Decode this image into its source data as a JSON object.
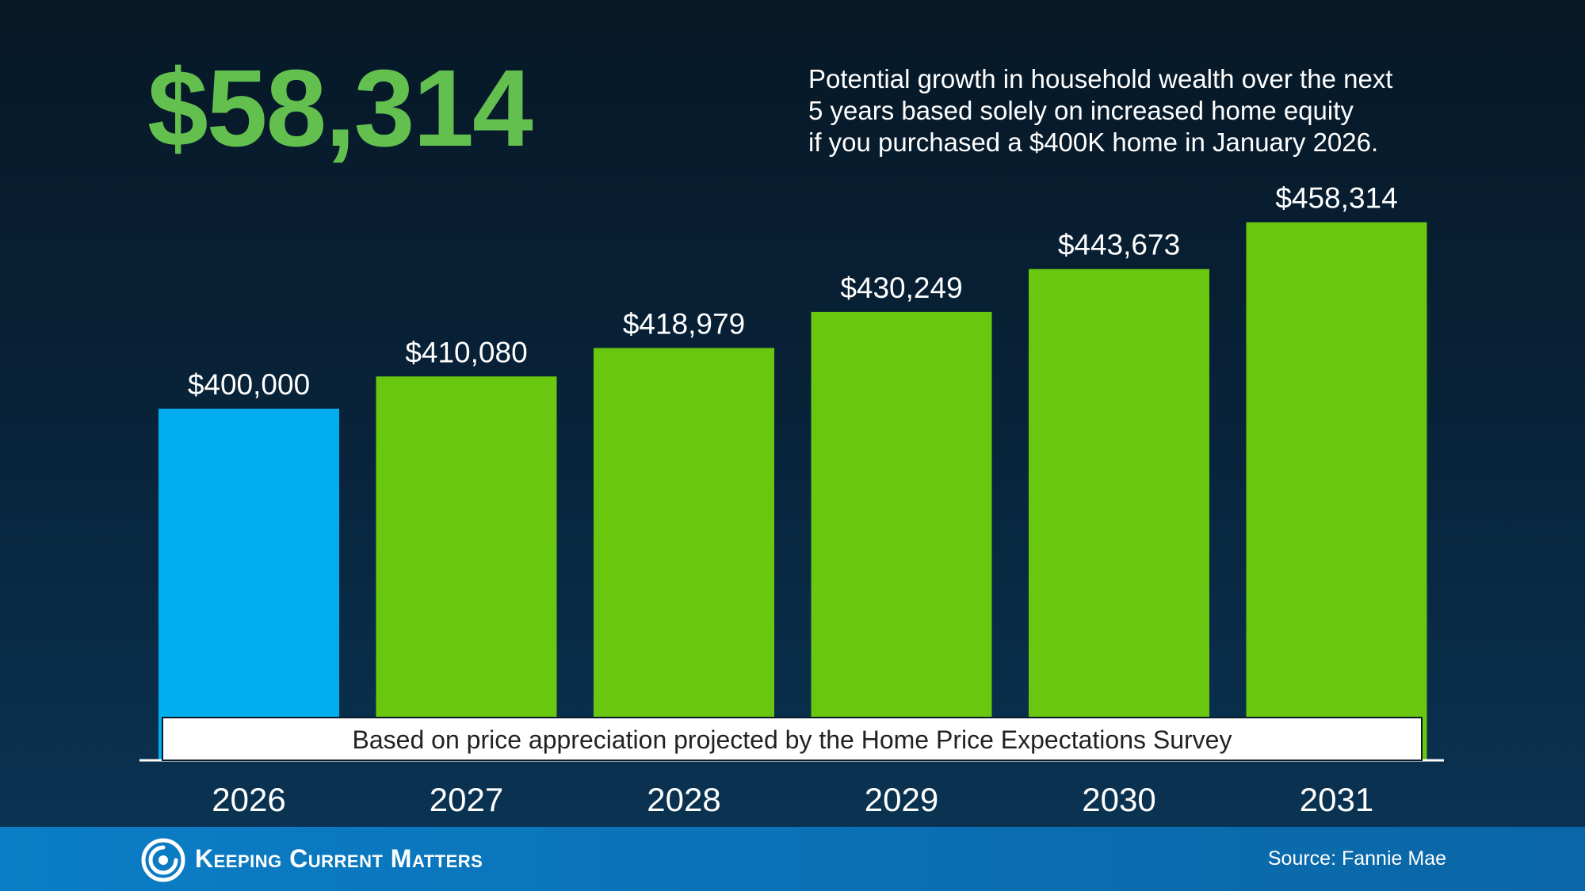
{
  "headline": {
    "value": "$58,314",
    "description_lines": [
      "Potential growth in household wealth over the next",
      "5 years based solely on increased home equity",
      "if you purchased a $400K home in January 2026."
    ]
  },
  "chart_data": {
    "type": "bar",
    "categories": [
      "2026",
      "2027",
      "2028",
      "2029",
      "2030",
      "2031"
    ],
    "values": [
      400000,
      410080,
      418979,
      430249,
      443673,
      458314
    ],
    "value_labels": [
      "$400,000",
      "$410,080",
      "$418,979",
      "$430,249",
      "$443,673",
      "$458,314"
    ],
    "bar_colors": [
      "#00aeef",
      "#6ac70f",
      "#6ac70f",
      "#6ac70f",
      "#6ac70f",
      "#6ac70f"
    ],
    "ylim": [
      0,
      520000
    ],
    "grid": false,
    "annotation": "Based on price appreciation projected by the Home Price Expectations Survey"
  },
  "footer": {
    "brand": "Keeping Current Matters",
    "source": "Source: Fannie Mae"
  },
  "colors": {
    "headline": "#63c04f",
    "baseline_bar": "#00aeef",
    "projection_bar": "#6ac70f",
    "footer_bg": "#0b7ec7"
  }
}
